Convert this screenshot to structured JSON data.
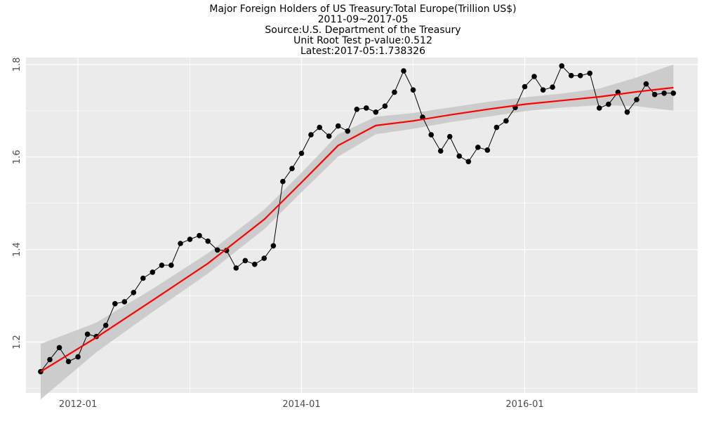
{
  "chart_data": {
    "type": "line",
    "title_lines": [
      "Major Foreign Holders of US Treasury:Total Europe(Trillion US$)",
      "2011-09~2017-05",
      "Source:U.S. Department of the Treasury",
      "Unit Root Test p-value:0.512",
      "Latest:2017-05:1.738326"
    ],
    "xlabel": "",
    "ylabel": "",
    "x_ticks": [
      "2012-01",
      "2014-01",
      "2016-01"
    ],
    "y_ticks": [
      1.2,
      1.4,
      1.6,
      1.8
    ],
    "xlim": [
      "2011-07-15",
      "2017-07-20"
    ],
    "ylim": [
      1.09,
      1.815
    ],
    "grid": true,
    "legend": "none",
    "colors": {
      "panel": "#ebebeb",
      "grid": "#ffffff",
      "series": "#000000",
      "smooth": "#ff0000",
      "band": "#c9c9c9"
    },
    "series": [
      {
        "x": [
          "2011-09",
          "2011-10",
          "2011-11",
          "2011-12",
          "2012-01",
          "2012-02",
          "2012-03",
          "2012-04",
          "2012-05",
          "2012-06",
          "2012-07",
          "2012-08",
          "2012-09",
          "2012-10",
          "2012-11",
          "2012-12",
          "2013-01",
          "2013-02",
          "2013-03",
          "2013-04",
          "2013-05",
          "2013-06",
          "2013-07",
          "2013-08",
          "2013-09",
          "2013-10",
          "2013-11",
          "2013-12",
          "2014-01",
          "2014-02",
          "2014-03",
          "2014-04",
          "2014-05",
          "2014-06",
          "2014-07",
          "2014-08",
          "2014-09",
          "2014-10",
          "2014-11",
          "2014-12",
          "2015-01",
          "2015-02",
          "2015-03",
          "2015-04",
          "2015-05",
          "2015-06",
          "2015-07",
          "2015-08",
          "2015-09",
          "2015-10",
          "2015-11",
          "2015-12",
          "2016-01",
          "2016-02",
          "2016-03",
          "2016-04",
          "2016-05",
          "2016-06",
          "2016-07",
          "2016-08",
          "2016-09",
          "2016-10",
          "2016-11",
          "2016-12",
          "2017-01",
          "2017-02",
          "2017-03",
          "2017-04",
          "2017-05"
        ],
        "values": [
          1.136,
          1.162,
          1.188,
          1.158,
          1.168,
          1.217,
          1.212,
          1.236,
          1.283,
          1.287,
          1.307,
          1.338,
          1.351,
          1.366,
          1.366,
          1.413,
          1.422,
          1.43,
          1.418,
          1.399,
          1.398,
          1.36,
          1.376,
          1.368,
          1.381,
          1.408,
          1.547,
          1.575,
          1.608,
          1.648,
          1.664,
          1.645,
          1.667,
          1.656,
          1.703,
          1.706,
          1.697,
          1.71,
          1.74,
          1.786,
          1.745,
          1.686,
          1.648,
          1.613,
          1.644,
          1.602,
          1.59,
          1.621,
          1.615,
          1.664,
          1.678,
          1.707,
          1.752,
          1.774,
          1.745,
          1.751,
          1.797,
          1.776,
          1.776,
          1.781,
          1.706,
          1.714,
          1.74,
          1.697,
          1.724,
          1.758,
          1.735,
          1.738,
          1.738
        ]
      }
    ],
    "smooth": {
      "x": [
        "2011-09",
        "2012-03",
        "2012-09",
        "2013-03",
        "2013-09",
        "2014-01",
        "2014-05",
        "2014-09",
        "2015-01",
        "2015-05",
        "2015-09",
        "2016-01",
        "2016-05",
        "2016-09",
        "2017-01",
        "2017-05"
      ],
      "values": [
        1.136,
        1.21,
        1.29,
        1.37,
        1.465,
        1.545,
        1.625,
        1.668,
        1.678,
        1.691,
        1.703,
        1.714,
        1.722,
        1.73,
        1.741,
        1.75
      ],
      "se": [
        0.06,
        0.032,
        0.025,
        0.022,
        0.021,
        0.021,
        0.024,
        0.019,
        0.017,
        0.016,
        0.016,
        0.015,
        0.015,
        0.018,
        0.031,
        0.05
      ]
    }
  }
}
